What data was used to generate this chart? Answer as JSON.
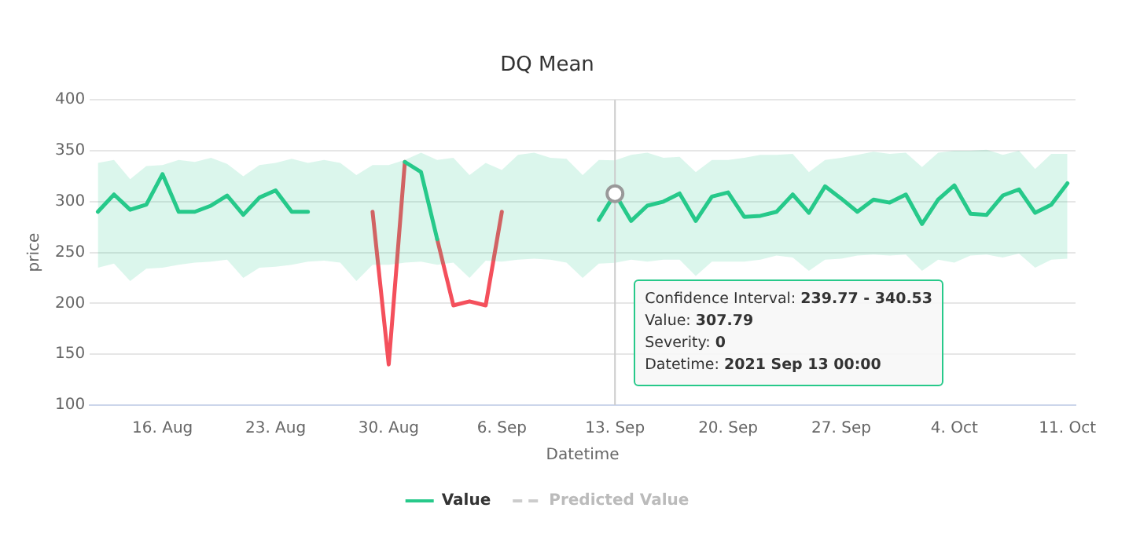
{
  "chart_data": {
    "type": "line",
    "title": "DQ Mean",
    "xlabel": "Datetime",
    "ylabel": "price",
    "x": [
      "2021-08-12",
      "2021-08-13",
      "2021-08-14",
      "2021-08-15",
      "2021-08-16",
      "2021-08-17",
      "2021-08-18",
      "2021-08-19",
      "2021-08-20",
      "2021-08-21",
      "2021-08-22",
      "2021-08-23",
      "2021-08-24",
      "2021-08-25",
      "2021-08-26",
      "2021-08-27",
      "2021-08-28",
      "2021-08-29",
      "2021-08-30",
      "2021-08-31",
      "2021-09-01",
      "2021-09-02",
      "2021-09-03",
      "2021-09-04",
      "2021-09-05",
      "2021-09-06",
      "2021-09-07",
      "2021-09-08",
      "2021-09-09",
      "2021-09-10",
      "2021-09-11",
      "2021-09-12",
      "2021-09-13",
      "2021-09-14",
      "2021-09-15",
      "2021-09-16",
      "2021-09-17",
      "2021-09-18",
      "2021-09-19",
      "2021-09-20",
      "2021-09-21",
      "2021-09-22",
      "2021-09-23",
      "2021-09-24",
      "2021-09-25",
      "2021-09-26",
      "2021-09-27",
      "2021-09-28",
      "2021-09-29",
      "2021-09-30",
      "2021-10-01",
      "2021-10-02",
      "2021-10-03",
      "2021-10-04",
      "2021-10-05",
      "2021-10-06",
      "2021-10-07",
      "2021-10-08",
      "2021-10-09",
      "2021-10-10",
      "2021-10-11"
    ],
    "series": [
      {
        "name": "Value",
        "color": "#27c98a",
        "values": [
          290,
          307,
          292,
          297,
          327,
          290,
          290,
          296,
          306,
          287,
          304,
          311,
          290,
          290,
          null,
          null,
          null,
          null,
          null,
          339,
          329,
          263,
          null,
          null,
          null,
          null,
          null,
          null,
          null,
          null,
          null,
          282,
          307.79,
          281,
          296,
          300,
          308,
          281,
          305,
          309,
          285,
          286,
          290,
          307,
          289,
          315,
          303,
          290,
          302,
          299,
          307,
          278,
          302,
          316,
          288,
          287,
          306,
          312,
          289,
          297,
          318
        ],
        "lower": [
          235,
          239,
          222,
          234,
          235,
          238,
          240,
          241,
          243,
          225,
          235,
          236,
          238,
          241,
          242,
          240,
          222,
          238,
          238,
          240,
          241,
          238,
          240,
          225,
          242,
          241,
          243,
          244,
          243,
          240,
          225,
          239,
          239.77,
          243,
          241,
          243,
          243,
          227,
          241,
          241,
          241,
          243,
          247,
          245,
          232,
          243,
          244,
          247,
          248,
          247,
          248,
          232,
          243,
          240,
          247,
          248,
          245,
          249,
          235,
          243,
          244
        ],
        "upper": [
          338,
          341,
          322,
          335,
          336,
          341,
          339,
          343,
          337,
          325,
          336,
          338,
          342,
          338,
          341,
          338,
          326,
          336,
          336,
          341,
          348,
          341,
          343,
          326,
          338,
          331,
          346,
          348,
          343,
          342,
          326,
          341,
          340.53,
          346,
          348,
          343,
          344,
          329,
          341,
          341,
          343,
          346,
          346,
          347,
          329,
          341,
          343,
          346,
          349,
          347,
          348,
          334,
          348,
          350,
          350,
          351,
          346,
          350,
          332,
          347,
          347
        ]
      },
      {
        "color": "#f4505c",
        "values": [
          null,
          null,
          null,
          null,
          null,
          null,
          null,
          null,
          null,
          null,
          null,
          null,
          null,
          null,
          null,
          null,
          null,
          290,
          140,
          339,
          null,
          263,
          198,
          202,
          198,
          290,
          null,
          null,
          null,
          null,
          null,
          null,
          null,
          null,
          null,
          null,
          null,
          null,
          null,
          null,
          null,
          null,
          null,
          null,
          null,
          null,
          null,
          null,
          null,
          null,
          null,
          null,
          null,
          null,
          null,
          null,
          null,
          null,
          null,
          null,
          null
        ]
      },
      {
        "name": "Predicted Value",
        "color": "#cccccc",
        "line_style": "dashed",
        "values": [
          null,
          null,
          null,
          null,
          null,
          null,
          null,
          null,
          null,
          null,
          null,
          null,
          null,
          null,
          null,
          null,
          null,
          null,
          null,
          null,
          null,
          null,
          null,
          null,
          null,
          null,
          null,
          null,
          null,
          null,
          null,
          null,
          null,
          null,
          null,
          null,
          null,
          null,
          null,
          null,
          null,
          null,
          null,
          null,
          null,
          null,
          null,
          null,
          null,
          null,
          null,
          null,
          null,
          null,
          null,
          null,
          null,
          null,
          null,
          null,
          null
        ]
      }
    ],
    "xlim": [
      "2021-08-11T12:00",
      "2021-10-11T12:00"
    ],
    "xticks": [
      {
        "value": "2021-08-16",
        "label": "16. Aug"
      },
      {
        "value": "2021-08-23",
        "label": "23. Aug"
      },
      {
        "value": "2021-08-30",
        "label": "30. Aug"
      },
      {
        "value": "2021-09-06",
        "label": "6. Sep"
      },
      {
        "value": "2021-09-13",
        "label": "13. Sep"
      },
      {
        "value": "2021-09-20",
        "label": "20. Sep"
      },
      {
        "value": "2021-09-27",
        "label": "27. Sep"
      },
      {
        "value": "2021-10-04",
        "label": "4. Oct"
      },
      {
        "value": "2021-10-11",
        "label": "11. Oct"
      }
    ],
    "ylim": [
      100,
      400
    ],
    "yticks": [
      100,
      150,
      200,
      250,
      300,
      350,
      400
    ],
    "grid": "y",
    "legend": "bottom",
    "marker": "none",
    "line_style": "solid",
    "ref_lines": [
      {
        "axis": "x",
        "value": "2021-09-13",
        "color": "#cccccc"
      }
    ],
    "annotations": [
      "Confidence Interval: 239.77 - 340.53",
      "Value: 307.79",
      "Severity: 0",
      "Datetime: 2021 Sep 13 00:00"
    ]
  }
}
